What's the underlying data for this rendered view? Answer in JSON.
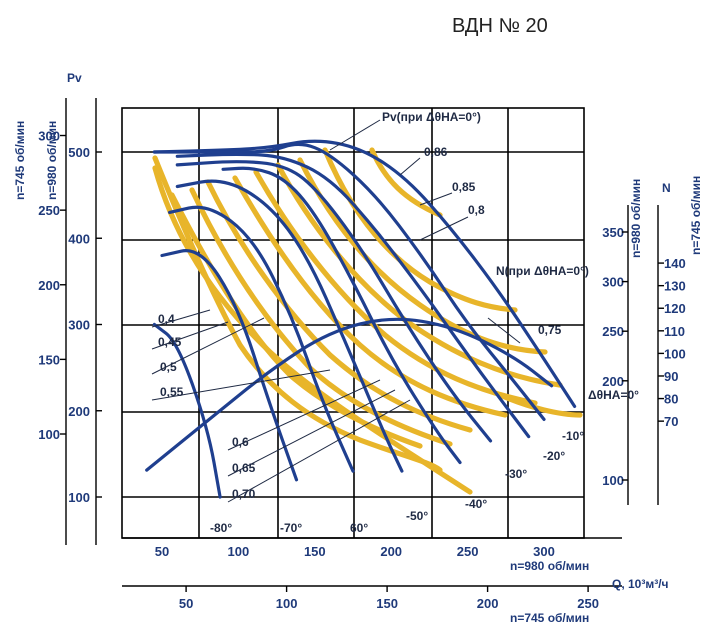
{
  "chart_data": {
    "type": "line",
    "title": "ВДН № 20",
    "units": {
      "pv_label": "Pv",
      "n_label": "N",
      "q_label": "Q, 10³м³/ч",
      "rpm_980": "n=980 об/мин",
      "rpm_745": "n=745 об/мин"
    },
    "axes": {
      "q980_ticks": [
        "50",
        "100",
        "150",
        "200",
        "250",
        "300"
      ],
      "q745_ticks": [
        "50",
        "100",
        "150",
        "200",
        "250"
      ],
      "pv980_ticks": [
        "100",
        "200",
        "300",
        "400",
        "500"
      ],
      "pv745_ticks": [
        "100",
        "150",
        "200",
        "250",
        "300"
      ],
      "n980_ticks": [
        "100",
        "200",
        "250",
        "300",
        "350"
      ],
      "n745_ticks": [
        "70",
        "80",
        "90",
        "100",
        "110",
        "120",
        "130",
        "140"
      ]
    },
    "blue_curve_labels": [
      "Pv(при ΔθНА=0°)",
      "N(при ΔθНА=0°)",
      "ΔθНА=0°",
      "-10°",
      "-20°",
      "-30°",
      "-40°",
      "-50°",
      "60°",
      "-70°",
      "-80°"
    ],
    "efficiency_labels": [
      "0,86",
      "0,85",
      "0,8",
      "0,75",
      "0,4",
      "0,45",
      "0,5",
      "0,55",
      "0,6",
      "0,65",
      "0,70"
    ],
    "series": [
      {
        "name": "ΔθНА=0°",
        "x": [
          45,
          90,
          120,
          150,
          180,
          210,
          240,
          270,
          300,
          320
        ],
        "y": [
          500,
          502,
          505,
          515,
          505,
          470,
          410,
          340,
          260,
          205
        ]
      },
      {
        "name": "-10°",
        "x": [
          45,
          90,
          120,
          140,
          160,
          190,
          220,
          250,
          280,
          300
        ],
        "y": [
          500,
          500,
          500,
          512,
          498,
          450,
          380,
          300,
          235,
          190
        ]
      },
      {
        "name": "-20°",
        "x": [
          60,
          100,
          130,
          160,
          190,
          220,
          250,
          275,
          290
        ],
        "y": [
          495,
          498,
          495,
          470,
          410,
          340,
          265,
          205,
          170
        ]
      },
      {
        "name": "-30°",
        "x": [
          60,
          100,
          130,
          150,
          180,
          210,
          240,
          265
        ],
        "y": [
          485,
          490,
          485,
          460,
          390,
          300,
          220,
          165
        ]
      },
      {
        "name": "-40°",
        "x": [
          90,
          110,
          130,
          150,
          175,
          200,
          230,
          245
        ],
        "y": [
          480,
          482,
          470,
          430,
          350,
          260,
          175,
          140
        ]
      },
      {
        "name": "-50°",
        "x": [
          60,
          90,
          120,
          145,
          170,
          195,
          207
        ],
        "y": [
          460,
          470,
          440,
          380,
          280,
          175,
          130
        ]
      },
      {
        "name": "60°",
        "x": [
          55,
          80,
          110,
          135,
          155,
          175
        ],
        "y": [
          430,
          440,
          400,
          310,
          210,
          130
        ]
      },
      {
        "name": "-70°",
        "x": [
          50,
          75,
          100,
          120,
          138
        ],
        "y": [
          380,
          390,
          320,
          210,
          120
        ]
      },
      {
        "name": "-80°",
        "x": [
          45,
          60,
          80,
          88
        ],
        "y": [
          300,
          280,
          180,
          100
        ]
      },
      {
        "name": "N(при ΔθНА=0°)",
        "x": [
          40,
          80,
          120,
          160,
          200,
          240,
          280,
          305
        ],
        "y": [
          110,
          160,
          210,
          250,
          265,
          255,
          225,
          195
        ]
      }
    ]
  }
}
